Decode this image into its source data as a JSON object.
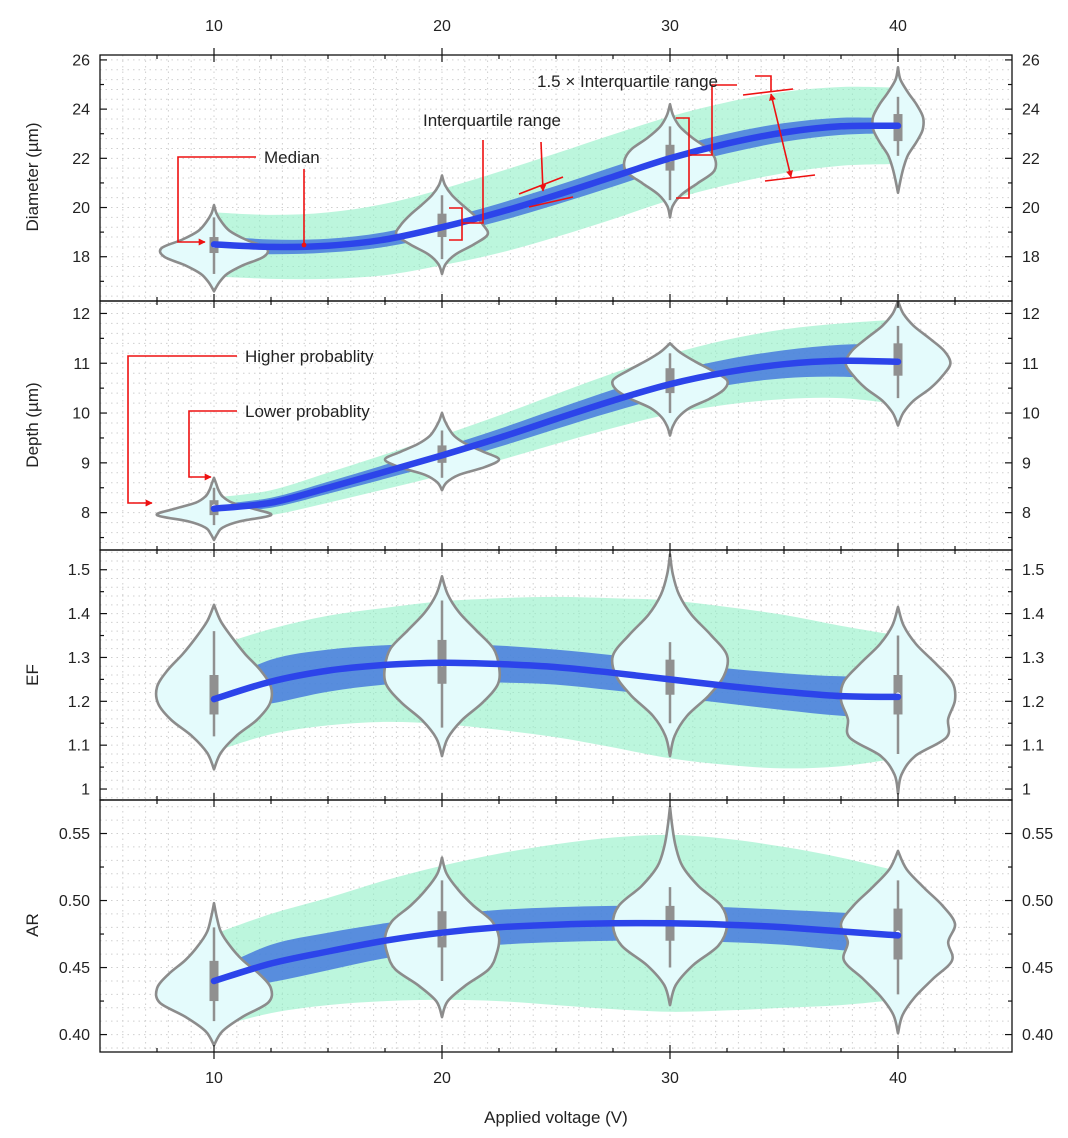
{
  "chart_data": {
    "type": "violin",
    "xlabel": "Applied voltage (V)",
    "x_ticks": [
      10,
      20,
      30,
      40
    ],
    "xlim": [
      5,
      45
    ],
    "colors": {
      "violin_fill": "#e4fbfc",
      "violin_edge": "#8c8c8c",
      "box": "#909090",
      "band_outer": "#8ff0c6",
      "band_inner": "#3f73dd",
      "trend": "#2c44ea",
      "annotation": "#ee1111"
    },
    "panels": [
      {
        "id": "diameter",
        "ylabel": "Diameter (µm)",
        "ylim": [
          16.2,
          26.2
        ],
        "y_ticks": [
          18,
          20,
          22,
          24,
          26
        ],
        "trend_x": [
          10,
          12.5,
          15,
          17.5,
          20,
          22.5,
          25,
          27.5,
          30,
          32.5,
          35,
          37.5,
          40
        ],
        "trend_y": [
          18.5,
          18.4,
          18.45,
          18.7,
          19.2,
          19.8,
          20.5,
          21.25,
          22.0,
          22.6,
          23.05,
          23.3,
          23.32
        ],
        "inner_band": [
          0.35,
          0.3,
          0.28,
          0.3,
          0.33,
          0.36,
          0.38,
          0.4,
          0.4,
          0.4,
          0.38,
          0.35,
          0.3
        ],
        "outer_band": [
          1.3,
          1.3,
          1.35,
          1.45,
          1.55,
          1.65,
          1.7,
          1.72,
          1.7,
          1.68,
          1.65,
          1.6,
          1.55
        ],
        "violins": [
          {
            "x": 10,
            "median": 18.45,
            "q1": 18.15,
            "q3": 18.8,
            "whisker": [
              17.3,
              19.6
            ],
            "extent": [
              16.6,
              20.1
            ],
            "half_width": 2.3,
            "profile": [
              0,
              0.1,
              0.25,
              0.55,
              0.95,
              1.0,
              0.6,
              0.3,
              0.15,
              0.05,
              0
            ]
          },
          {
            "x": 20,
            "median": 19.2,
            "q1": 18.8,
            "q3": 19.75,
            "whisker": [
              17.9,
              20.5
            ],
            "extent": [
              17.3,
              21.3
            ],
            "half_width": 2.0,
            "profile": [
              0,
              0.08,
              0.3,
              0.7,
              1.0,
              0.9,
              0.7,
              0.45,
              0.22,
              0.07,
              0
            ]
          },
          {
            "x": 30,
            "median": 21.95,
            "q1": 21.5,
            "q3": 22.55,
            "whisker": [
              20.3,
              23.3
            ],
            "extent": [
              19.6,
              24.2
            ],
            "half_width": 2.0,
            "profile": [
              0,
              0.06,
              0.25,
              0.6,
              0.95,
              1.0,
              0.85,
              0.5,
              0.22,
              0.07,
              0
            ]
          },
          {
            "x": 40,
            "median": 23.3,
            "q1": 22.7,
            "q3": 23.8,
            "whisker": [
              22.1,
              24.5
            ],
            "extent": [
              20.6,
              25.7
            ],
            "half_width": 1.1,
            "profile": [
              0,
              0.1,
              0.22,
              0.4,
              0.72,
              0.98,
              1.0,
              0.75,
              0.4,
              0.1,
              0
            ]
          }
        ],
        "annotations": {
          "median": "Median",
          "iqr": "Interquartile range",
          "whisker_range": "1.5 × Interquartile range"
        }
      },
      {
        "id": "depth",
        "ylabel": "Depth (µm)",
        "ylim": [
          7.25,
          12.25
        ],
        "y_ticks": [
          8,
          9,
          10,
          11,
          12
        ],
        "trend_x": [
          10,
          12.5,
          15,
          17.5,
          20,
          22.5,
          25,
          27.5,
          30,
          32.5,
          35,
          37.5,
          40
        ],
        "trend_y": [
          8.08,
          8.2,
          8.5,
          8.82,
          9.15,
          9.5,
          9.88,
          10.25,
          10.58,
          10.82,
          10.98,
          11.05,
          11.03
        ],
        "inner_band": [
          0.08,
          0.1,
          0.12,
          0.14,
          0.16,
          0.18,
          0.2,
          0.22,
          0.24,
          0.26,
          0.28,
          0.32,
          0.36
        ],
        "outer_band": [
          0.22,
          0.25,
          0.3,
          0.35,
          0.4,
          0.45,
          0.5,
          0.55,
          0.6,
          0.65,
          0.7,
          0.75,
          0.85
        ],
        "violins": [
          {
            "x": 10,
            "median": 8.12,
            "q1": 7.95,
            "q3": 8.25,
            "whisker": [
              7.75,
              8.5
            ],
            "extent": [
              7.45,
              8.7
            ],
            "half_width": 2.5,
            "profile": [
              0,
              0.06,
              0.15,
              0.45,
              1.0,
              0.7,
              0.32,
              0.15,
              0.08,
              0.04,
              0
            ]
          },
          {
            "x": 20,
            "median": 9.15,
            "q1": 9.0,
            "q3": 9.35,
            "whisker": [
              8.7,
              9.65
            ],
            "extent": [
              8.45,
              10.0
            ],
            "half_width": 2.5,
            "profile": [
              0,
              0.08,
              0.3,
              0.75,
              1.0,
              0.72,
              0.42,
              0.22,
              0.12,
              0.05,
              0
            ]
          },
          {
            "x": 30,
            "median": 10.6,
            "q1": 10.4,
            "q3": 10.9,
            "whisker": [
              10.0,
              11.2
            ],
            "extent": [
              9.55,
              11.4
            ],
            "half_width": 2.5,
            "profile": [
              0,
              0.05,
              0.15,
              0.35,
              0.7,
              0.95,
              1.0,
              0.75,
              0.45,
              0.18,
              0
            ]
          },
          {
            "x": 40,
            "median": 11.05,
            "q1": 10.75,
            "q3": 11.4,
            "whisker": [
              10.3,
              11.75
            ],
            "extent": [
              9.75,
              12.25
            ],
            "half_width": 2.3,
            "profile": [
              0,
              0.1,
              0.3,
              0.62,
              0.85,
              1.0,
              0.88,
              0.6,
              0.3,
              0.1,
              0
            ]
          }
        ],
        "annotations": {
          "higher": "Higher probablity",
          "lower": "Lower probablity"
        }
      },
      {
        "id": "ef",
        "ylabel": "EF",
        "ylim": [
          0.975,
          1.545
        ],
        "y_ticks": [
          1.0,
          1.1,
          1.2,
          1.3,
          1.4,
          1.5
        ],
        "trend_x": [
          10,
          12.5,
          15,
          17.5,
          20,
          22.5,
          25,
          27.5,
          30,
          32.5,
          35,
          37.5,
          40
        ],
        "trend_y": [
          1.205,
          1.245,
          1.27,
          1.283,
          1.288,
          1.285,
          1.278,
          1.265,
          1.25,
          1.235,
          1.222,
          1.212,
          1.21
        ],
        "inner_band": [
          0.03,
          0.05,
          0.048,
          0.045,
          0.043,
          0.042,
          0.04,
          0.04,
          0.04,
          0.04,
          0.042,
          0.045,
          0.048
        ],
        "outer_band": [
          0.12,
          0.12,
          0.125,
          0.13,
          0.14,
          0.15,
          0.16,
          0.17,
          0.18,
          0.18,
          0.175,
          0.16,
          0.14
        ],
        "violins": [
          {
            "x": 10,
            "median": 1.205,
            "q1": 1.17,
            "q3": 1.26,
            "whisker": [
              1.12,
              1.36
            ],
            "extent": [
              1.045,
              1.42
            ],
            "half_width": 2.5,
            "profile": [
              0,
              0.12,
              0.38,
              0.75,
              0.98,
              1.0,
              0.82,
              0.55,
              0.32,
              0.12,
              0
            ]
          },
          {
            "x": 20,
            "median": 1.285,
            "q1": 1.24,
            "q3": 1.34,
            "whisker": [
              1.14,
              1.43
            ],
            "extent": [
              1.075,
              1.485
            ],
            "half_width": 2.5,
            "profile": [
              0,
              0.1,
              0.35,
              0.72,
              0.98,
              1.0,
              0.9,
              0.6,
              0.3,
              0.1,
              0
            ]
          },
          {
            "x": 30,
            "median": 1.25,
            "q1": 1.215,
            "q3": 1.295,
            "whisker": [
              1.15,
              1.335
            ],
            "extent": [
              1.075,
              1.535
            ],
            "half_width": 2.5,
            "profile": [
              0,
              0.08,
              0.3,
              0.68,
              0.95,
              1.0,
              0.72,
              0.38,
              0.16,
              0.05,
              0
            ]
          },
          {
            "x": 40,
            "median": 1.215,
            "q1": 1.17,
            "q3": 1.26,
            "whisker": [
              1.08,
              1.35
            ],
            "extent": [
              0.99,
              1.415
            ],
            "half_width": 2.5,
            "profile": [
              0,
              0.06,
              0.3,
              0.85,
              0.88,
              1.0,
              0.95,
              0.65,
              0.32,
              0.1,
              0
            ]
          }
        ]
      },
      {
        "id": "ar",
        "ylabel": "AR",
        "ylim": [
          0.387,
          0.575
        ],
        "y_ticks": [
          0.4,
          0.45,
          0.5,
          0.55
        ],
        "y_tick_labels": [
          "0.40",
          "0.45",
          "0.50",
          "0.55"
        ],
        "trend_x": [
          10,
          12.5,
          15,
          17.5,
          20,
          22.5,
          25,
          27.5,
          30,
          32.5,
          35,
          37.5,
          40
        ],
        "trend_y": [
          0.44,
          0.453,
          0.462,
          0.47,
          0.476,
          0.48,
          0.482,
          0.483,
          0.483,
          0.482,
          0.48,
          0.477,
          0.474
        ],
        "inner_band": [
          0.008,
          0.014,
          0.014,
          0.013,
          0.013,
          0.013,
          0.013,
          0.013,
          0.013,
          0.013,
          0.013,
          0.014,
          0.014
        ],
        "outer_band": [
          0.035,
          0.037,
          0.04,
          0.045,
          0.05,
          0.055,
          0.06,
          0.064,
          0.066,
          0.064,
          0.06,
          0.055,
          0.048
        ],
        "violins": [
          {
            "x": 10,
            "median": 0.44,
            "q1": 0.425,
            "q3": 0.455,
            "whisker": [
              0.41,
              0.48
            ],
            "extent": [
              0.392,
              0.498
            ],
            "half_width": 2.5,
            "profile": [
              0,
              0.15,
              0.5,
              0.95,
              1.0,
              0.8,
              0.5,
              0.28,
              0.12,
              0.05,
              0
            ]
          },
          {
            "x": 20,
            "median": 0.475,
            "q1": 0.465,
            "q3": 0.492,
            "whisker": [
              0.44,
              0.515
            ],
            "extent": [
              0.413,
              0.532
            ],
            "half_width": 2.5,
            "profile": [
              0,
              0.1,
              0.42,
              0.82,
              0.96,
              1.0,
              0.88,
              0.55,
              0.28,
              0.08,
              0
            ]
          },
          {
            "x": 30,
            "median": 0.483,
            "q1": 0.47,
            "q3": 0.496,
            "whisker": [
              0.45,
              0.51
            ],
            "extent": [
              0.422,
              0.57
            ],
            "half_width": 2.5,
            "profile": [
              0,
              0.1,
              0.4,
              0.85,
              1.0,
              0.9,
              0.5,
              0.22,
              0.1,
              0.04,
              0
            ]
          },
          {
            "x": 40,
            "median": 0.476,
            "q1": 0.456,
            "q3": 0.494,
            "whisker": [
              0.43,
              0.515
            ],
            "extent": [
              0.401,
              0.537
            ],
            "half_width": 2.5,
            "profile": [
              0,
              0.08,
              0.3,
              0.62,
              0.95,
              0.88,
              1.0,
              0.78,
              0.45,
              0.15,
              0
            ]
          }
        ]
      }
    ]
  }
}
